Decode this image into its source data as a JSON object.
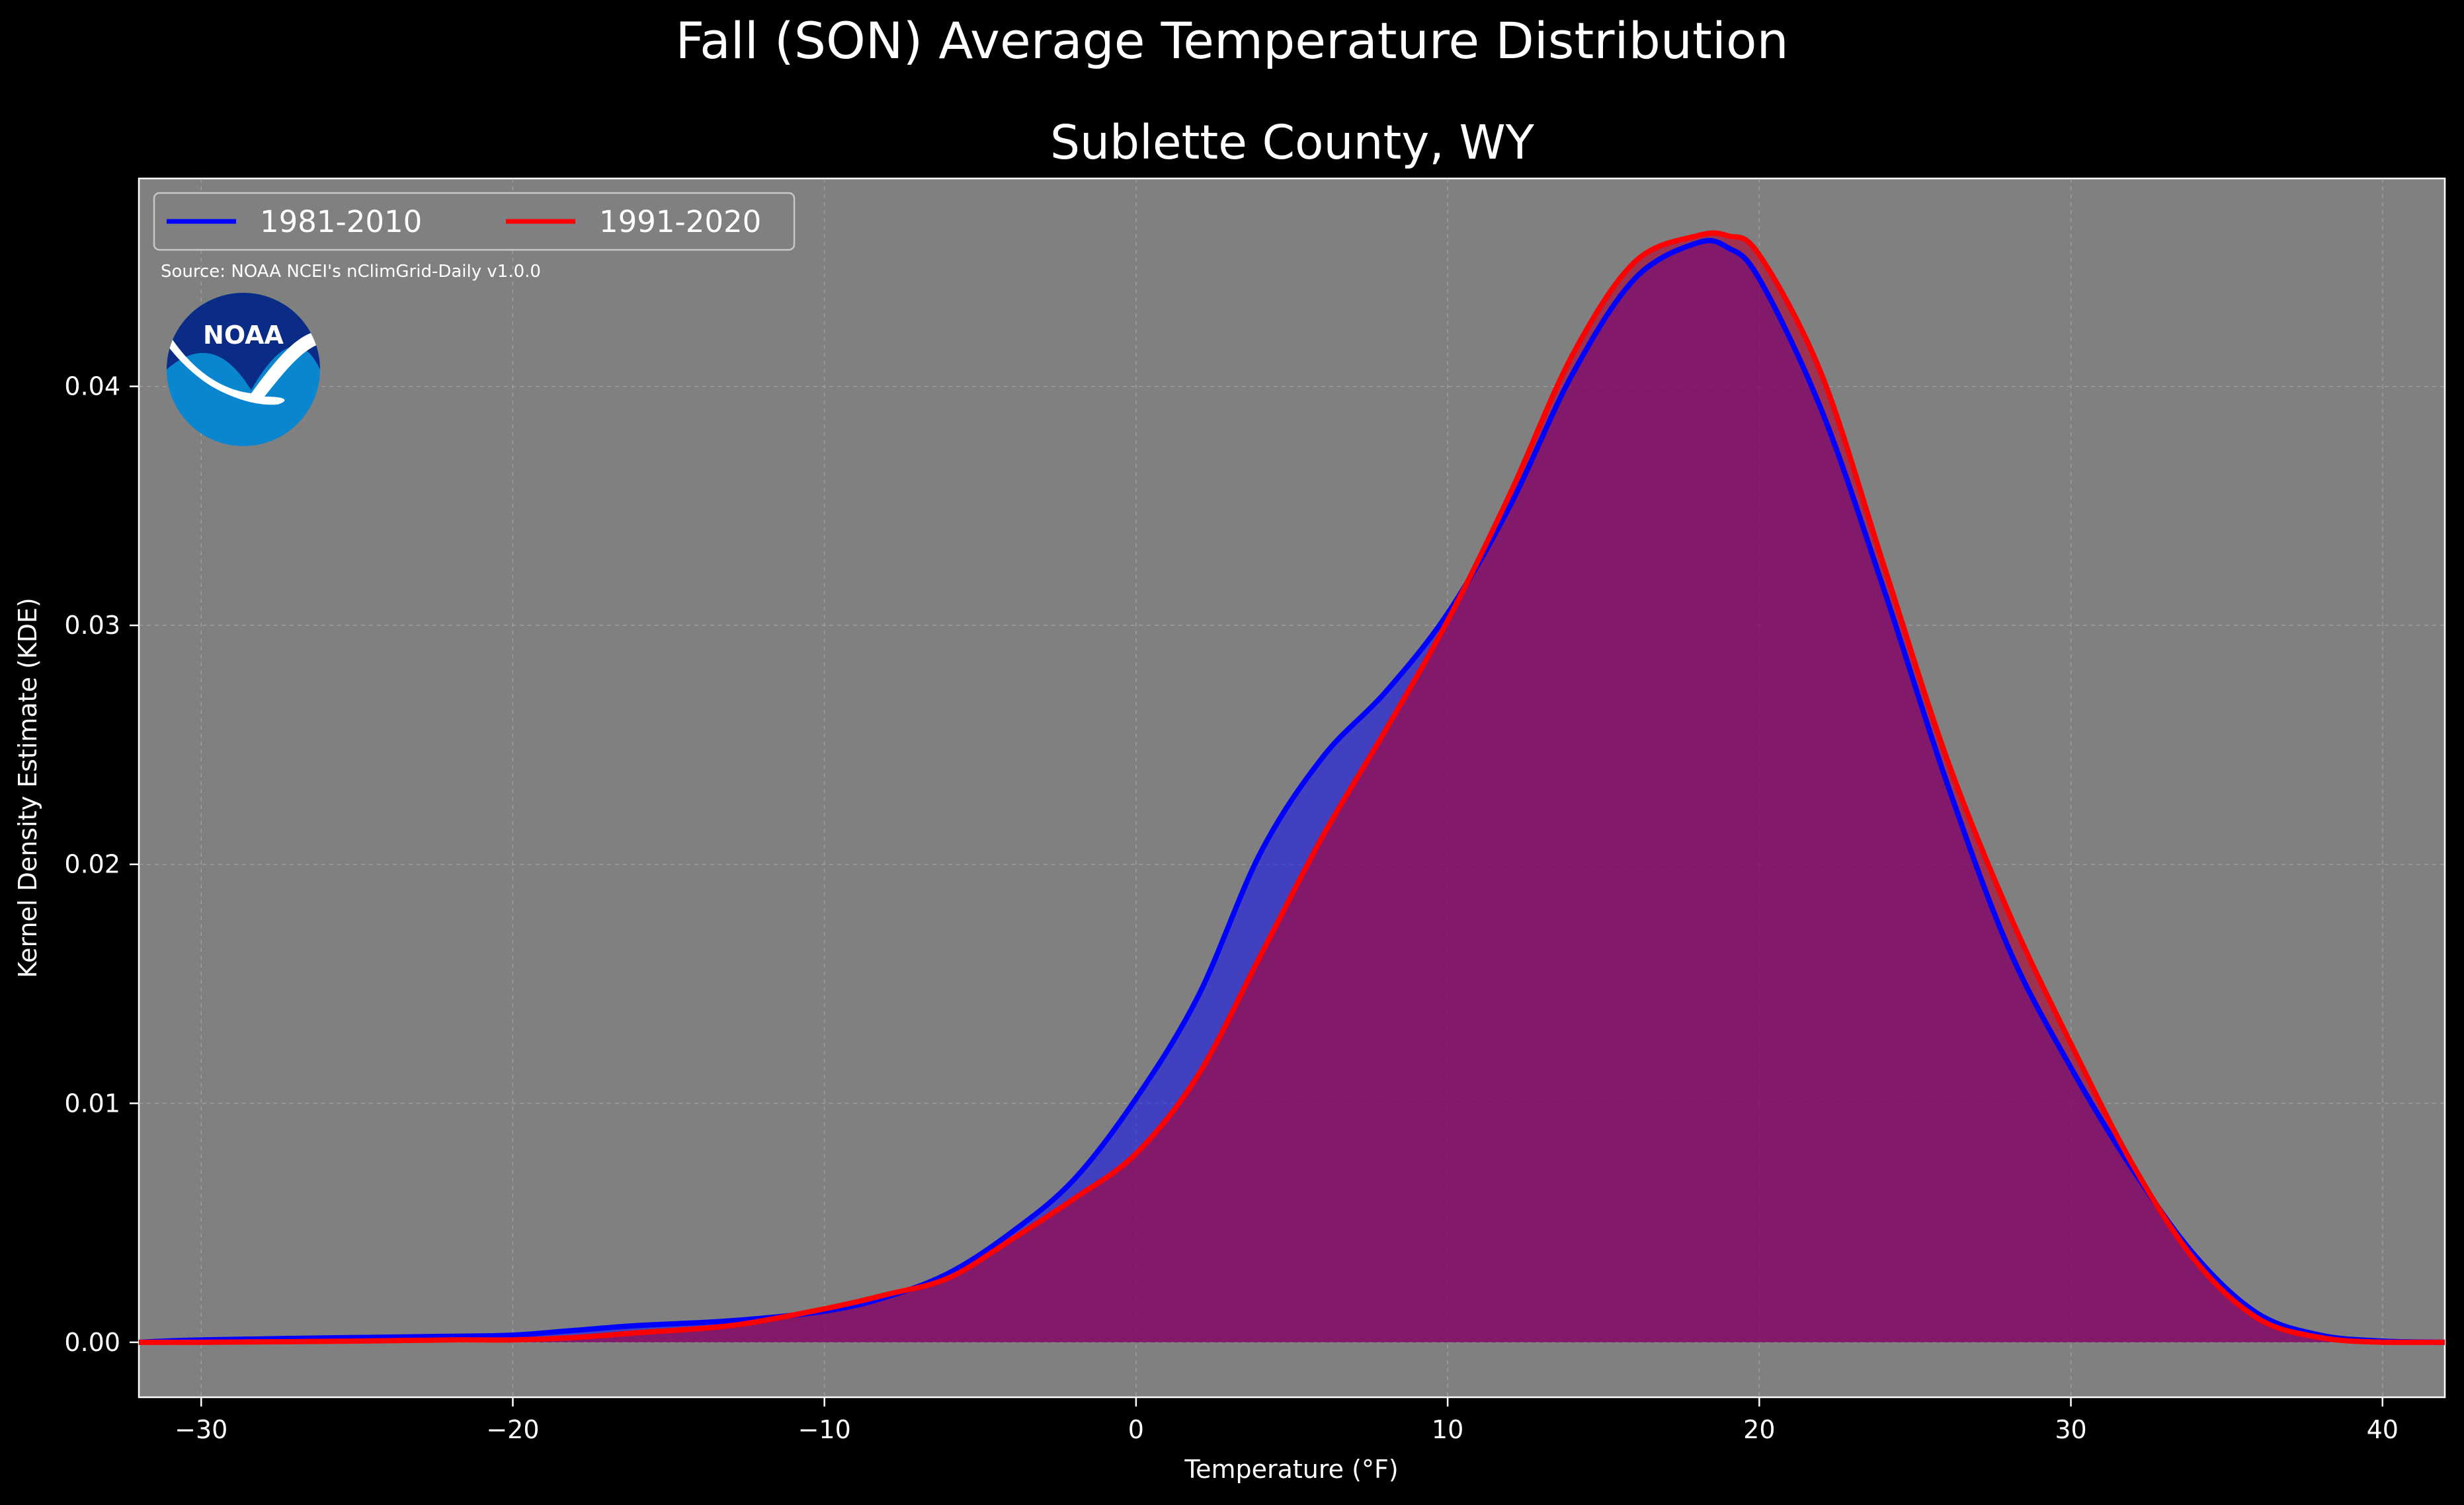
{
  "chart_data": {
    "type": "area",
    "title": "Fall (SON) Average Temperature Distribution",
    "subtitle": "Sublette County, WY",
    "xlabel": "Temperature ($^\\circ$F)",
    "xlabel_display": "Temperature (°F)",
    "ylabel": "Kernel Density Estimate (KDE)",
    "xlim": [
      -32,
      42
    ],
    "ylim": [
      -0.0023,
      0.0487
    ],
    "xticks": [
      -30,
      -20,
      -10,
      0,
      10,
      20,
      30,
      40
    ],
    "xtick_labels": [
      "−30",
      "−20",
      "−10",
      "0",
      "10",
      "20",
      "30",
      "40"
    ],
    "yticks": [
      0.0,
      0.01,
      0.02,
      0.03,
      0.04
    ],
    "ytick_labels": [
      "0.00",
      "0.01",
      "0.02",
      "0.03",
      "0.04"
    ],
    "grid": true,
    "legend_position": "top-left",
    "source_note": "Source: NOAA NCEI's nClimGrid-Daily v1.0.0",
    "logo_text": "NOAA",
    "background_color": "#000000",
    "plot_background_color": "#808080",
    "series": [
      {
        "name": "1981-2010",
        "color": "#0000ff",
        "fill_color": "#0000ff",
        "fill_opacity": 0.5,
        "x": [
          -32,
          -30,
          -25,
          -22,
          -20,
          -18,
          -16,
          -13,
          -10,
          -8,
          -6,
          -4,
          -2,
          0,
          2,
          4,
          6,
          8,
          10,
          12,
          14,
          16,
          18,
          19,
          20,
          22,
          24,
          26,
          28,
          30,
          32,
          34,
          36,
          38,
          40,
          42
        ],
        "y": [
          0,
          0.0001,
          0.0002,
          0.00025,
          0.0003,
          0.0005,
          0.0007,
          0.0009,
          0.0013,
          0.0019,
          0.0029,
          0.0046,
          0.0068,
          0.0102,
          0.0145,
          0.0205,
          0.0245,
          0.0272,
          0.0305,
          0.035,
          0.0405,
          0.0445,
          0.046,
          0.0458,
          0.0445,
          0.039,
          0.0315,
          0.0235,
          0.0165,
          0.0115,
          0.0072,
          0.0036,
          0.0012,
          0.0003,
          5e-05,
          0
        ]
      },
      {
        "name": "1991-2020",
        "color": "#ff0000",
        "fill_color": "#b00030",
        "fill_opacity": 0.6,
        "x": [
          -32,
          -30,
          -25,
          -22,
          -20,
          -18,
          -16,
          -13,
          -10,
          -8,
          -6,
          -4,
          -2,
          0,
          2,
          4,
          6,
          8,
          10,
          12,
          14,
          16,
          18,
          19,
          20,
          22,
          24,
          26,
          28,
          30,
          32,
          34,
          36,
          38,
          40,
          42
        ],
        "y": [
          0,
          0,
          5e-05,
          0.0001,
          0.0001,
          0.0002,
          0.0004,
          0.0007,
          0.0014,
          0.002,
          0.0027,
          0.0043,
          0.006,
          0.0079,
          0.0112,
          0.0162,
          0.0212,
          0.0256,
          0.0302,
          0.0355,
          0.0413,
          0.0452,
          0.0463,
          0.0463,
          0.0455,
          0.0405,
          0.0325,
          0.0245,
          0.018,
          0.0125,
          0.0074,
          0.0034,
          0.001,
          0.0002,
          0,
          0
        ]
      }
    ]
  }
}
